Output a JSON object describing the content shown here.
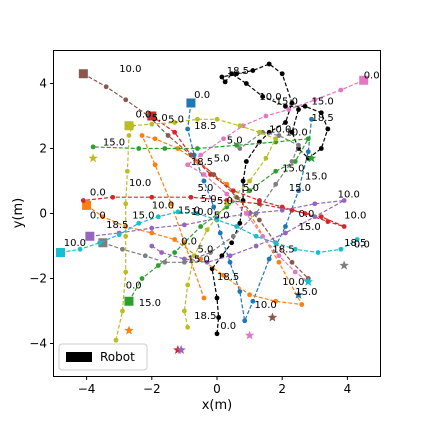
{
  "chart_data": {
    "type": "scatter",
    "title": "",
    "xlabel": "x(m)",
    "ylabel": "y(m)",
    "xlim": [
      -5.0,
      5.0
    ],
    "ylim": [
      -5.0,
      5.0
    ],
    "xticks": [
      -4,
      -2,
      0,
      2,
      4
    ],
    "yticks": [
      -4,
      -2,
      0,
      2,
      4
    ],
    "grid": false,
    "legend": {
      "placement": "lower-left",
      "entries": [
        {
          "label": "Robot",
          "color": "#000000"
        }
      ]
    },
    "time_labels": [
      "0.0",
      "5.0",
      "10.0",
      "15.0",
      "18.5"
    ],
    "series": [
      {
        "color": "#000000",
        "points": [
          [
            0.0,
            -3.7
          ],
          [
            0.05,
            -3.2
          ],
          [
            0.0,
            -2.6
          ],
          [
            -0.15,
            -1.7
          ],
          [
            0.15,
            -1.3
          ],
          [
            0.45,
            -0.9
          ],
          [
            0.7,
            -0.3
          ],
          [
            0.8,
            0.4
          ],
          [
            0.8,
            1.0
          ],
          [
            0.9,
            1.6
          ],
          [
            1.3,
            2.2
          ],
          [
            1.6,
            2.5
          ],
          [
            2.1,
            2.8
          ],
          [
            2.3,
            3.4
          ],
          [
            2.0,
            4.3
          ],
          [
            1.6,
            4.6
          ],
          [
            1.1,
            4.4
          ],
          [
            0.6,
            4.3
          ],
          [
            0.15,
            4.2
          ],
          [
            0.25,
            4.05
          ],
          [
            0.45,
            4.3
          ],
          [
            0.9,
            4.0
          ],
          [
            1.4,
            3.6
          ],
          [
            2.1,
            3.3
          ],
          [
            2.7,
            3.3
          ],
          [
            3.2,
            3.1
          ],
          [
            3.4,
            2.6
          ],
          [
            3.2,
            2.0
          ],
          [
            2.8,
            1.7
          ],
          [
            2.5,
            2.0
          ],
          [
            2.3,
            2.5
          ],
          [
            2.5,
            3.2
          ]
        ],
        "start": [
          0.0,
          -3.7
        ],
        "end": [
          0.15,
          4.2
        ],
        "marker": "circle"
      },
      {
        "color": "#1f77b4",
        "points": [
          [
            -0.8,
            3.4
          ],
          [
            -0.9,
            2.6
          ],
          [
            -0.7,
            1.8
          ],
          [
            -0.4,
            1.0
          ],
          [
            -0.1,
            0.2
          ],
          [
            0.1,
            -0.6
          ],
          [
            0.4,
            -1.5
          ],
          [
            0.7,
            -2.4
          ],
          [
            0.85,
            -3.3
          ],
          [
            1.1,
            -2.7
          ],
          [
            1.6,
            -1.4
          ],
          [
            2.1,
            -0.4
          ],
          [
            2.5,
            0.7
          ],
          [
            2.8,
            1.9
          ],
          [
            2.9,
            2.9
          ]
        ],
        "start": [
          -0.8,
          3.4
        ],
        "end": [
          2.9,
          2.9
        ],
        "marker": "square",
        "goal": [
          2.5,
          -2.5
        ]
      },
      {
        "color": "#ff7f0e",
        "points": [
          [
            -4.0,
            0.25
          ],
          [
            -3.5,
            -0.1
          ],
          [
            -2.8,
            -0.4
          ],
          [
            -2.0,
            -0.6
          ],
          [
            -1.3,
            -0.8
          ],
          [
            -0.5,
            -1.4
          ],
          [
            0.2,
            -1.9
          ],
          [
            1.0,
            -2.5
          ],
          [
            1.8,
            -2.7
          ],
          [
            2.6,
            -2.8
          ],
          [
            1.9,
            -1.5
          ],
          [
            1.0,
            0.0
          ],
          [
            0.3,
            0.9
          ],
          [
            -0.6,
            1.6
          ],
          [
            -1.2,
            2.0
          ],
          [
            -1.9,
            2.3
          ],
          [
            -2.3,
            2.4
          ],
          [
            -1.9,
            1.5
          ],
          [
            -1.4,
            0.3
          ],
          [
            -1.0,
            -0.9
          ],
          [
            -0.4,
            -2.6
          ]
        ],
        "start": [
          -4.0,
          0.25
        ],
        "end": [
          2.6,
          -2.8
        ],
        "marker": "square",
        "goal": [
          -2.7,
          -3.6
        ]
      },
      {
        "color": "#2ca02c",
        "points": [
          [
            -2.7,
            -2.7
          ],
          [
            -2.3,
            -2.0
          ],
          [
            -1.8,
            -1.6
          ],
          [
            -1.3,
            -1.2
          ],
          [
            -0.5,
            -0.4
          ],
          [
            0.3,
            0.2
          ],
          [
            1.0,
            0.7
          ],
          [
            1.8,
            1.3
          ],
          [
            2.4,
            1.6
          ],
          [
            2.8,
            2.3
          ],
          [
            1.8,
            2.2
          ],
          [
            0.6,
            2.1
          ],
          [
            -0.6,
            2.0
          ],
          [
            -1.6,
            2.0
          ],
          [
            -2.4,
            2.0
          ],
          [
            -3.8,
            2.05
          ]
        ],
        "start": [
          -2.7,
          -2.7
        ],
        "end": [
          -3.8,
          2.05
        ],
        "marker": "square",
        "goal": [
          2.9,
          1.7
        ]
      },
      {
        "color": "#d62728",
        "points": [
          [
            -2.0,
            3.0
          ],
          [
            -1.3,
            2.5
          ],
          [
            -0.8,
            1.8
          ],
          [
            -0.2,
            1.2
          ],
          [
            0.5,
            0.7
          ],
          [
            1.3,
            0.4
          ],
          [
            2.0,
            0.2
          ],
          [
            2.7,
            0.0
          ],
          [
            3.4,
            -0.25
          ],
          [
            3.9,
            -0.4
          ],
          [
            3.2,
            -0.1
          ],
          [
            2.3,
            0.1
          ],
          [
            1.3,
            0.3
          ],
          [
            0.3,
            0.4
          ],
          [
            -0.8,
            0.5
          ],
          [
            -2.0,
            0.5
          ],
          [
            -3.2,
            0.5
          ],
          [
            -4.1,
            0.4
          ]
        ],
        "start": [
          -2.0,
          3.0
        ],
        "end": [
          3.9,
          -0.4
        ],
        "marker": "square",
        "goal": [
          -1.2,
          -4.2
        ]
      },
      {
        "color": "#9467bd",
        "points": [
          [
            -3.9,
            -0.7
          ],
          [
            -3.0,
            -0.6
          ],
          [
            -2.0,
            -0.45
          ],
          [
            -1.0,
            -0.35
          ],
          [
            0.0,
            -0.15
          ],
          [
            1.0,
            0.0
          ],
          [
            2.0,
            0.1
          ],
          [
            3.0,
            0.3
          ],
          [
            3.9,
            0.4
          ],
          [
            3.0,
            -0.1
          ],
          [
            2.1,
            -0.6
          ],
          [
            1.2,
            -1.0
          ],
          [
            0.4,
            -1.3
          ],
          [
            -0.3,
            -1.5
          ],
          [
            -1.0,
            -1.4
          ],
          [
            -1.7,
            -1.2
          ],
          [
            -2.0,
            -1.0
          ]
        ],
        "start": [
          -3.9,
          -0.7
        ],
        "end": [
          3.9,
          0.4
        ],
        "marker": "square",
        "goal": [
          -1.1,
          -4.2
        ]
      },
      {
        "color": "#8c564b",
        "points": [
          [
            -4.1,
            4.3
          ],
          [
            -3.4,
            3.9
          ],
          [
            -2.8,
            3.5
          ],
          [
            -2.1,
            3.0
          ],
          [
            -1.5,
            2.4
          ],
          [
            -0.8,
            1.8
          ],
          [
            -0.1,
            1.2
          ],
          [
            0.6,
            0.5
          ],
          [
            1.3,
            -0.2
          ],
          [
            1.8,
            -0.9
          ],
          [
            2.3,
            -1.5
          ],
          [
            2.8,
            -2.0
          ]
        ],
        "start": [
          -4.1,
          4.3
        ],
        "end": [
          2.8,
          -2.0
        ],
        "marker": "square",
        "goal": [
          1.7,
          -3.2
        ]
      },
      {
        "color": "#e377c2",
        "points": [
          [
            4.5,
            4.1
          ],
          [
            3.8,
            3.8
          ],
          [
            3.0,
            3.5
          ],
          [
            2.2,
            3.2
          ],
          [
            1.5,
            3.0
          ],
          [
            0.8,
            2.7
          ],
          [
            0.2,
            2.3
          ],
          [
            -0.5,
            1.8
          ],
          [
            -0.9,
            1.5
          ],
          [
            -0.4,
            1.2
          ],
          [
            0.3,
            0.6
          ],
          [
            0.9,
            0.0
          ],
          [
            1.4,
            -0.7
          ],
          [
            1.9,
            -1.3
          ],
          [
            2.4,
            -1.8
          ],
          [
            2.8,
            -2.1
          ]
        ],
        "start": [
          4.5,
          4.1
        ],
        "end": [
          -0.9,
          1.5
        ],
        "marker": "square",
        "goal": [
          1.0,
          -3.75
        ]
      },
      {
        "color": "#7f7f7f",
        "points": [
          [
            -3.5,
            -0.9
          ],
          [
            -2.9,
            -1.1
          ],
          [
            -2.2,
            -1.3
          ],
          [
            -1.6,
            -1.5
          ],
          [
            -1.0,
            -1.5
          ],
          [
            -0.2,
            -1.2
          ],
          [
            0.5,
            -0.7
          ],
          [
            1.2,
            0.0
          ],
          [
            1.8,
            0.9
          ],
          [
            2.3,
            1.6
          ],
          [
            2.5,
            2.1
          ],
          [
            1.9,
            2.4
          ],
          [
            1.4,
            2.5
          ],
          [
            0.7,
            2.0
          ]
        ],
        "start": [
          -3.5,
          -0.9
        ],
        "end": [
          2.5,
          2.1
        ],
        "marker": "square",
        "goal": [
          3.9,
          -1.6
        ]
      },
      {
        "color": "#bcbd22",
        "points": [
          [
            -3.1,
            -3.9
          ],
          [
            -2.9,
            -3.0
          ],
          [
            -2.8,
            -1.8
          ],
          [
            -2.8,
            -0.7
          ],
          [
            -2.8,
            0.3
          ],
          [
            -2.75,
            1.3
          ],
          [
            -2.7,
            2.4
          ],
          [
            -2.6,
            2.7
          ],
          [
            -2.0,
            2.75
          ],
          [
            -1.3,
            2.8
          ],
          [
            -0.6,
            2.9
          ],
          [
            0.0,
            2.9
          ],
          [
            0.7,
            2.7
          ],
          [
            1.3,
            2.5
          ],
          [
            1.8,
            2.3
          ],
          [
            1.5,
            1.7
          ],
          [
            1.0,
            1.0
          ],
          [
            0.3,
            0.3
          ],
          [
            -0.3,
            -0.5
          ],
          [
            -0.7,
            -1.3
          ],
          [
            -0.9,
            -2.2
          ],
          [
            -1.0,
            -3.0
          ],
          [
            -0.9,
            -3.5
          ]
        ],
        "start": [
          -2.7,
          2.7
        ],
        "end": [
          -0.9,
          -3.5
        ],
        "marker": "square",
        "goal": [
          -3.8,
          1.7
        ]
      },
      {
        "color": "#17becf",
        "points": [
          [
            -4.8,
            -1.2
          ],
          [
            -4.2,
            -1.1
          ],
          [
            -3.6,
            -0.9
          ],
          [
            -3.0,
            -0.65
          ],
          [
            -2.4,
            -0.3
          ],
          [
            -1.8,
            -0.1
          ],
          [
            -1.2,
            0.05
          ],
          [
            -0.6,
            0.0
          ],
          [
            0.0,
            -0.2
          ],
          [
            0.6,
            -0.4
          ],
          [
            1.2,
            -0.7
          ],
          [
            1.8,
            -0.9
          ],
          [
            2.4,
            -1.1
          ],
          [
            3.1,
            -1.2
          ],
          [
            3.8,
            -1.1
          ],
          [
            4.3,
            -0.8
          ]
        ],
        "start": [
          -4.8,
          -1.2
        ],
        "end": [
          4.3,
          -0.8
        ],
        "marker": "square",
        "goal": [
          2.8,
          -2.1
        ]
      }
    ],
    "annotations": [
      {
        "text": "0.0",
        "x": 4.5,
        "y": 4.15
      },
      {
        "text": "10.0",
        "x": -3.0,
        "y": 4.35
      },
      {
        "text": "18.5",
        "x": 0.3,
        "y": 4.3
      },
      {
        "text": "0.0",
        "x": -0.7,
        "y": 3.55
      },
      {
        "text": "10.0",
        "x": 1.3,
        "y": 3.5
      },
      {
        "text": "15.0",
        "x": 1.8,
        "y": 3.35
      },
      {
        "text": "15.0",
        "x": 2.9,
        "y": 3.35
      },
      {
        "text": "0.0",
        "x": -2.5,
        "y": 2.95
      },
      {
        "text": "5.0",
        "x": -2.0,
        "y": 2.85
      },
      {
        "text": "5.0",
        "x": -1.5,
        "y": 2.8
      },
      {
        "text": "18.5",
        "x": -0.7,
        "y": 2.6
      },
      {
        "text": "18.5",
        "x": 2.9,
        "y": 2.85
      },
      {
        "text": "15.0",
        "x": -3.5,
        "y": 2.1
      },
      {
        "text": "10.0",
        "x": 1.6,
        "y": 2.5
      },
      {
        "text": "10.0",
        "x": 2.1,
        "y": 2.4
      },
      {
        "text": "5.0",
        "x": 0.3,
        "y": 2.15
      },
      {
        "text": "5.0",
        "x": -0.1,
        "y": 1.6
      },
      {
        "text": "18.5",
        "x": -0.8,
        "y": 1.5
      },
      {
        "text": "15.0",
        "x": 2.0,
        "y": 1.3
      },
      {
        "text": "15.0",
        "x": 2.7,
        "y": 1.05
      },
      {
        "text": "10.0",
        "x": -2.7,
        "y": 0.85
      },
      {
        "text": "5.0",
        "x": -0.6,
        "y": 0.7
      },
      {
        "text": "5.0",
        "x": 0.8,
        "y": 0.7
      },
      {
        "text": "15.0",
        "x": 2.2,
        "y": 0.7
      },
      {
        "text": "0.0",
        "x": -3.9,
        "y": 0.55
      },
      {
        "text": "10.0",
        "x": 3.7,
        "y": 0.5
      },
      {
        "text": "5.0",
        "x": -0.5,
        "y": 0.35
      },
      {
        "text": "5.0",
        "x": 0.0,
        "y": 0.3
      },
      {
        "text": "10.0",
        "x": -2.0,
        "y": 0.15
      },
      {
        "text": "15.0",
        "x": -1.2,
        "y": 0.0
      },
      {
        "text": "10.0",
        "x": -0.8,
        "y": -0.05
      },
      {
        "text": "0.0",
        "x": -3.9,
        "y": -0.15
      },
      {
        "text": "15.0",
        "x": -2.6,
        "y": -0.15
      },
      {
        "text": "5.0",
        "x": -0.1,
        "y": -0.15
      },
      {
        "text": "0.0",
        "x": 2.5,
        "y": -0.1
      },
      {
        "text": "10.0",
        "x": 3.9,
        "y": -0.15
      },
      {
        "text": "18.5",
        "x": -3.4,
        "y": -0.45
      },
      {
        "text": "15.0",
        "x": 2.5,
        "y": -0.5
      },
      {
        "text": "10.0",
        "x": -4.7,
        "y": -1.0
      },
      {
        "text": "0.0",
        "x": -1.1,
        "y": -0.95
      },
      {
        "text": "18.5",
        "x": 3.9,
        "y": -1.0
      },
      {
        "text": "0.0",
        "x": 4.2,
        "y": -1.05
      },
      {
        "text": "5.0",
        "x": -0.6,
        "y": -1.2
      },
      {
        "text": "18.5",
        "x": 1.7,
        "y": -1.2
      },
      {
        "text": "15.0",
        "x": -0.9,
        "y": -1.5
      },
      {
        "text": "18.5",
        "x": 0.0,
        "y": -2.05
      },
      {
        "text": "10.0",
        "x": 2.0,
        "y": -2.2
      },
      {
        "text": "15.0",
        "x": 2.4,
        "y": -2.5
      },
      {
        "text": "0.0",
        "x": -2.8,
        "y": -2.3
      },
      {
        "text": "15.0",
        "x": -2.4,
        "y": -2.85
      },
      {
        "text": "10.0",
        "x": 1.15,
        "y": -2.9
      },
      {
        "text": "18.5",
        "x": -0.7,
        "y": -3.25
      },
      {
        "text": "0.0",
        "x": 0.1,
        "y": -3.55
      }
    ]
  }
}
